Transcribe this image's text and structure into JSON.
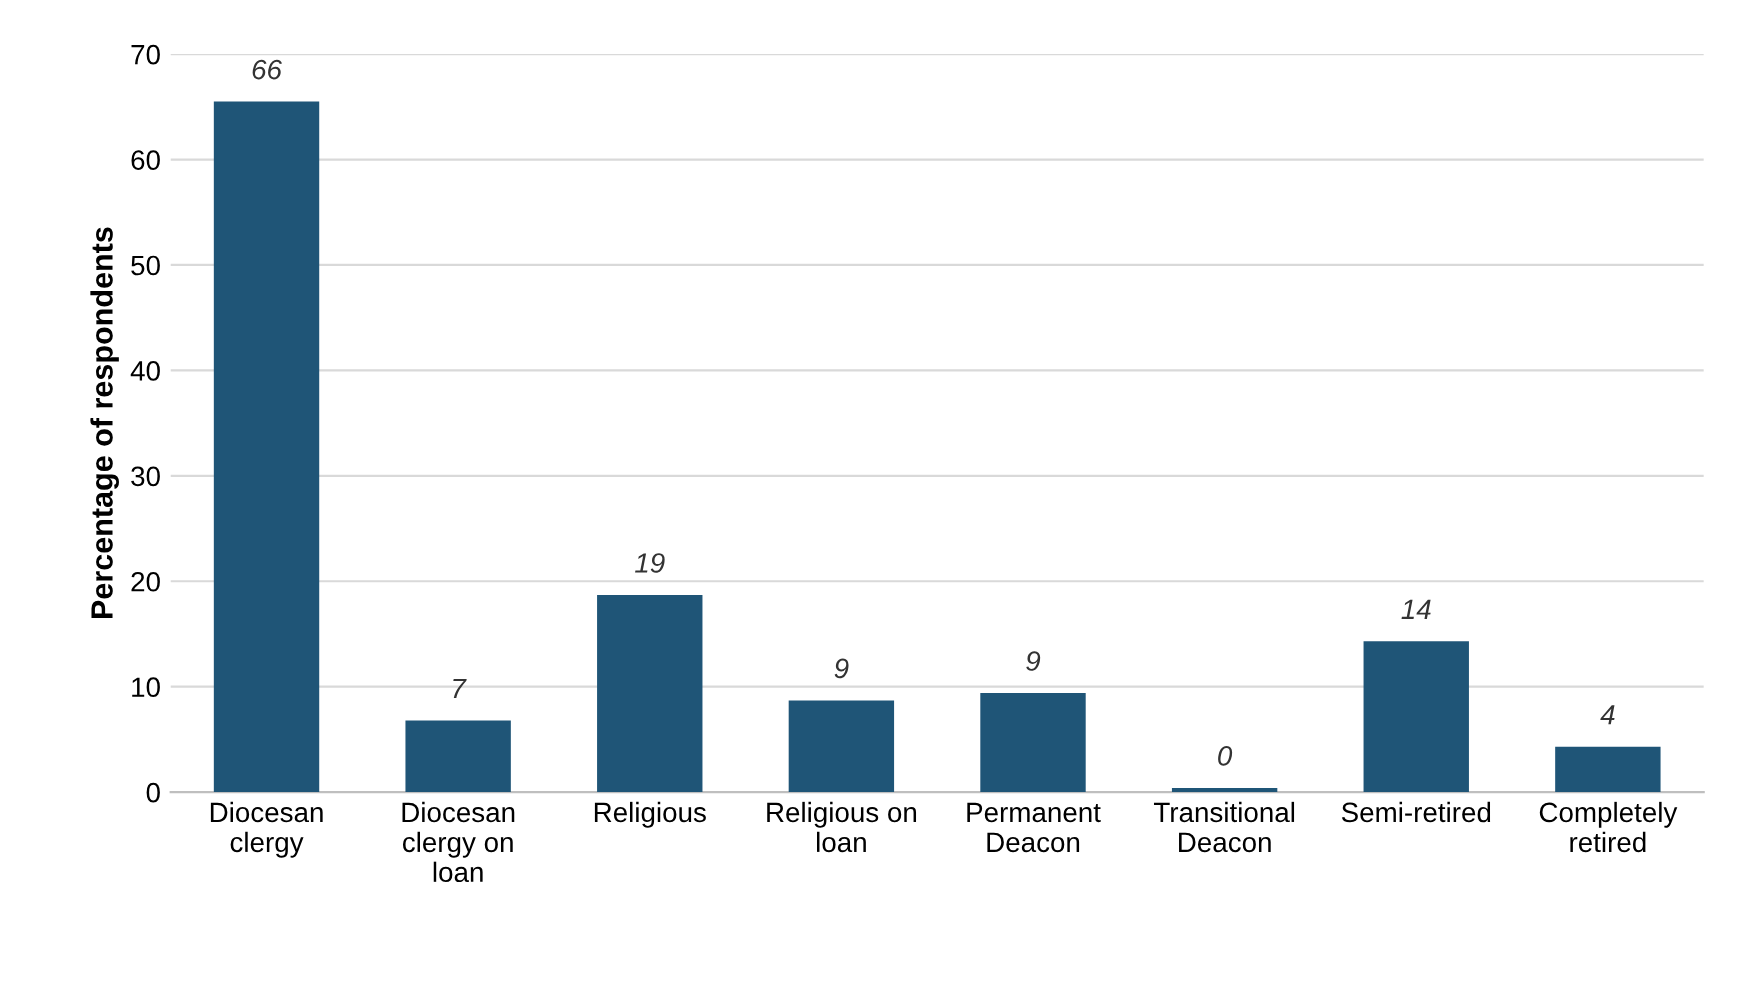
{
  "chart_data": {
    "type": "bar",
    "ylabel": "Percentage of respondents",
    "categories": [
      "Diocesan\nclergy",
      "Diocesan\nclergy on\nloan",
      "Religious",
      "Religious on\nloan",
      "Permanent\nDeacon",
      "Transitional\nDeacon",
      "Semi-retired",
      "Completely\nretired"
    ],
    "values": [
      65.5,
      6.8,
      18.7,
      8.7,
      9.4,
      0.4,
      14.3,
      4.3
    ],
    "value_labels": [
      "66",
      "7",
      "19",
      "9",
      "9",
      "0",
      "14",
      "4"
    ],
    "color": "#1f5577",
    "ylim": [
      0,
      70
    ],
    "yticks": [
      0,
      10,
      20,
      30,
      40,
      50,
      60,
      70
    ],
    "grid": "y",
    "legend": false
  }
}
